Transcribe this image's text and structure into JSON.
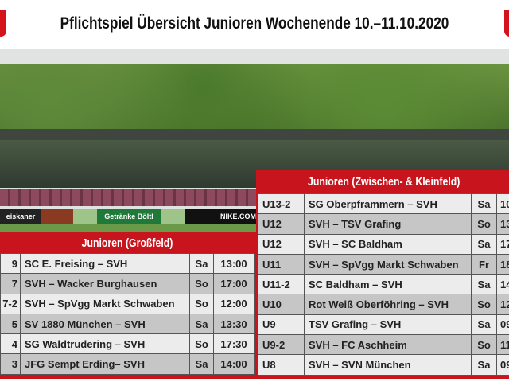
{
  "title": "Pflichtspiel Übersicht Junioren Wochenende 10.–11.10.2020",
  "colors": {
    "accent": "#c8141c",
    "row_light": "#ececec",
    "row_dark": "#c6c6c6"
  },
  "photo": {
    "banners": [
      "eiskaner",
      "",
      "Getränke Böltl",
      "",
      "NIKE.COM"
    ]
  },
  "grossfeld": {
    "header": "Junioren (Großfeld)",
    "rows": [
      {
        "team": "9",
        "match": "SC E. Freising – SVH",
        "day": "Sa",
        "time": "13:00"
      },
      {
        "team": "7",
        "match": "SVH – Wacker Burghausen",
        "day": "So",
        "time": "17:00"
      },
      {
        "team": "7-2",
        "match": "SVH – SpVgg Markt Schwaben",
        "day": "So",
        "time": "12:00"
      },
      {
        "team": "5",
        "match": "SV 1880 München – SVH",
        "day": "Sa",
        "time": "13:30"
      },
      {
        "team": "4",
        "match": "SG Waldtrudering – SVH",
        "day": "So",
        "time": "17:30"
      },
      {
        "team": "3",
        "match": "JFG Sempt Erding– SVH",
        "day": "Sa",
        "time": "14:00"
      }
    ]
  },
  "kleinfeld": {
    "header": "Junioren (Zwischen- & Kleinfeld)",
    "rows": [
      {
        "team": "U13-2",
        "match": "SG Oberpframmern – SVH",
        "day": "Sa",
        "time": "10"
      },
      {
        "team": "U12",
        "match": "SVH – TSV Grafing",
        "day": "So",
        "time": "13"
      },
      {
        "team": "U12",
        "match": "SVH – SC Baldham",
        "day": "Sa",
        "time": "17"
      },
      {
        "team": "U11",
        "match": "SVH – SpVgg Markt Schwaben",
        "day": "Fr",
        "time": "18"
      },
      {
        "team": "U11-2",
        "match": "SC Baldham – SVH",
        "day": "Sa",
        "time": "14"
      },
      {
        "team": "U10",
        "match": "Rot Weiß Oberföhring – SVH",
        "day": "So",
        "time": "12"
      },
      {
        "team": "U9",
        "match": "TSV Grafing – SVH",
        "day": "Sa",
        "time": "09"
      },
      {
        "team": "U9-2",
        "match": "SVH – FC Aschheim",
        "day": "So",
        "time": "11"
      },
      {
        "team": "U8",
        "match": "SVH – SVN München",
        "day": "Sa",
        "time": "09"
      }
    ]
  }
}
